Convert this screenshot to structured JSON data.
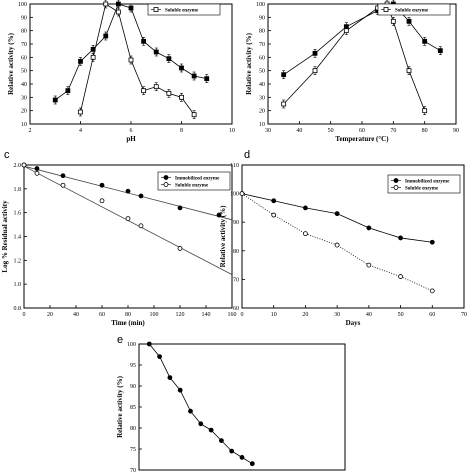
{
  "chart_data": [
    {
      "id": "a",
      "type": "line",
      "panel_label": "",
      "xlabel": "pH",
      "ylabel": "Relative activity (%)",
      "xlim": [
        2,
        10
      ],
      "ylim": [
        10,
        100
      ],
      "xticks": [
        2,
        4,
        6,
        8,
        10
      ],
      "yticks": [
        10,
        20,
        30,
        40,
        50,
        60,
        70,
        80,
        90,
        100
      ],
      "legend": [
        "Soluble enzyme"
      ],
      "series": [
        {
          "name": "",
          "marker": "filled-square",
          "line": "solid",
          "error_bars": true,
          "x": [
            3.0,
            3.5,
            4.0,
            4.5,
            5.0,
            5.5,
            6.0,
            6.5,
            7.0,
            7.5,
            8.0,
            8.5,
            9.0
          ],
          "y": [
            28,
            35,
            57,
            66,
            76,
            100,
            97,
            72,
            64,
            59,
            52,
            46,
            44
          ]
        },
        {
          "name": "Soluble enzyme",
          "marker": "open-square",
          "line": "solid",
          "error_bars": true,
          "x": [
            4.0,
            4.5,
            5.0,
            5.5,
            6.0,
            6.5,
            7.0,
            7.5,
            8.0,
            8.5
          ],
          "y": [
            19,
            60,
            100,
            94,
            58,
            35,
            38,
            33,
            30,
            17
          ]
        }
      ]
    },
    {
      "id": "b",
      "type": "line",
      "panel_label": "",
      "xlabel": "Temperature (°C)",
      "ylabel": "Relative activity (%)",
      "xlim": [
        30,
        90
      ],
      "ylim": [
        10,
        100
      ],
      "xticks": [
        30,
        40,
        50,
        60,
        70,
        80,
        90
      ],
      "yticks": [
        10,
        20,
        30,
        40,
        50,
        60,
        70,
        80,
        90,
        100
      ],
      "legend": [
        "Soluble enzyme"
      ],
      "series": [
        {
          "name": "",
          "marker": "filled-square",
          "line": "solid",
          "error_bars": true,
          "x": [
            35,
            45,
            55,
            65,
            70,
            75,
            80,
            85
          ],
          "y": [
            47,
            63,
            83,
            95,
            100,
            87,
            72,
            65
          ]
        },
        {
          "name": "Soluble enzyme",
          "marker": "open-square",
          "line": "solid",
          "error_bars": true,
          "x": [
            35,
            45,
            55,
            65,
            68,
            70,
            75,
            80
          ],
          "y": [
            25,
            50,
            80,
            97,
            100,
            87,
            50,
            20
          ]
        }
      ]
    },
    {
      "id": "c",
      "type": "scatter",
      "panel_label": "c",
      "xlabel": "Time (min)",
      "ylabel": "Log % Residual activity",
      "xlim": [
        0,
        160
      ],
      "ylim": [
        0.8,
        2.0
      ],
      "xticks": [
        0,
        20,
        40,
        60,
        80,
        100,
        120,
        140,
        160
      ],
      "yticks": [
        "0.8",
        "1.0",
        "1.2",
        "1.4",
        "1.6",
        "1.8",
        "2.0"
      ],
      "legend": [
        "Immobilized enzyme",
        "Soluble enzyme"
      ],
      "series": [
        {
          "name": "Immobilized enzyme",
          "marker": "filled-circle",
          "x": [
            0,
            10,
            30,
            60,
            80,
            90,
            120,
            150
          ],
          "y": [
            2.0,
            1.97,
            1.91,
            1.83,
            1.78,
            1.74,
            1.64,
            1.58
          ],
          "fit": {
            "x": [
              0,
              160
            ],
            "y": [
              1.99,
              1.54
            ]
          }
        },
        {
          "name": "Soluble enzyme",
          "marker": "open-circle",
          "x": [
            0,
            10,
            30,
            60,
            80,
            90,
            120
          ],
          "y": [
            2.0,
            1.93,
            1.83,
            1.7,
            1.55,
            1.49,
            1.3
          ],
          "fit": {
            "x": [
              0,
              160
            ],
            "y": [
              1.99,
              1.08
            ]
          }
        }
      ]
    },
    {
      "id": "d",
      "type": "line",
      "panel_label": "d",
      "xlabel": "Days",
      "ylabel": "Relative activity (%)",
      "xlim": [
        0,
        70
      ],
      "ylim": [
        60,
        110
      ],
      "xticks": [
        0,
        10,
        20,
        30,
        40,
        50,
        60,
        70
      ],
      "yticks": [
        60,
        70,
        80,
        90,
        100,
        110
      ],
      "legend": [
        "Immobilized enzyme",
        "Soluble enzyme"
      ],
      "series": [
        {
          "name": "Immobilized enzyme",
          "marker": "filled-circle",
          "line": "solid",
          "x": [
            0,
            10,
            20,
            30,
            40,
            50,
            60
          ],
          "y": [
            100,
            97.5,
            95,
            93,
            88,
            84.5,
            83
          ]
        },
        {
          "name": "Soluble enzyme",
          "marker": "open-circle",
          "line": "dotted",
          "x": [
            0,
            10,
            20,
            30,
            40,
            50,
            60
          ],
          "y": [
            100,
            92.5,
            86,
            82,
            75,
            71,
            66
          ]
        }
      ]
    },
    {
      "id": "e",
      "type": "line",
      "panel_label": "e",
      "xlabel": "",
      "ylabel": "Relative activity (%)",
      "xlim": [
        0,
        20
      ],
      "ylim": [
        70,
        100
      ],
      "xticks": [],
      "yticks": [
        70,
        75,
        80,
        85,
        90,
        95,
        100
      ],
      "legend": [],
      "series": [
        {
          "name": "",
          "marker": "filled-circle",
          "line": "solid",
          "x": [
            1,
            2,
            3,
            4,
            5,
            6,
            7,
            8,
            9,
            10,
            11
          ],
          "y": [
            100,
            97,
            92,
            89,
            84,
            81,
            79.5,
            77,
            74.5,
            73,
            71.5
          ]
        }
      ]
    }
  ]
}
